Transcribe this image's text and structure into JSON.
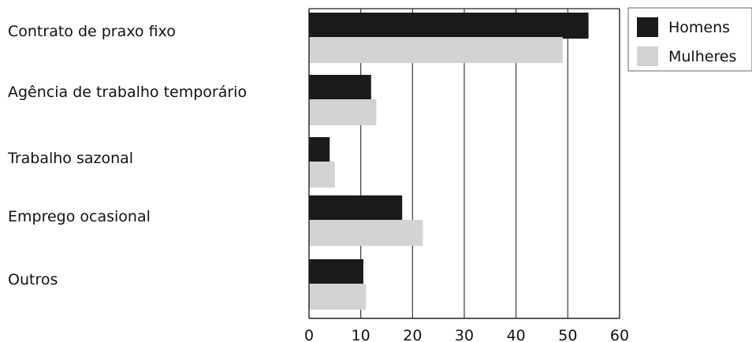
{
  "chart_data": {
    "type": "bar",
    "orientation": "horizontal",
    "categories": [
      "Contrato de praxo fixo",
      "Agência de trabalho temporário",
      "Trabalho sazonal",
      "Emprego ocasional",
      "Outros"
    ],
    "series": [
      {
        "name": "Homens",
        "values": [
          54,
          12,
          4,
          18,
          10.5
        ],
        "color": "#1a1a1a"
      },
      {
        "name": "Mulheres",
        "values": [
          49,
          13,
          5,
          22,
          11
        ],
        "color": "#d3d3d3"
      }
    ],
    "xlim": [
      0,
      60
    ],
    "xticks": [
      "0",
      "10",
      "20",
      "30",
      "40",
      "50",
      "60"
    ],
    "title": "",
    "xlabel": "",
    "ylabel": "",
    "grid": "vertical",
    "legend_position": "top-right"
  }
}
